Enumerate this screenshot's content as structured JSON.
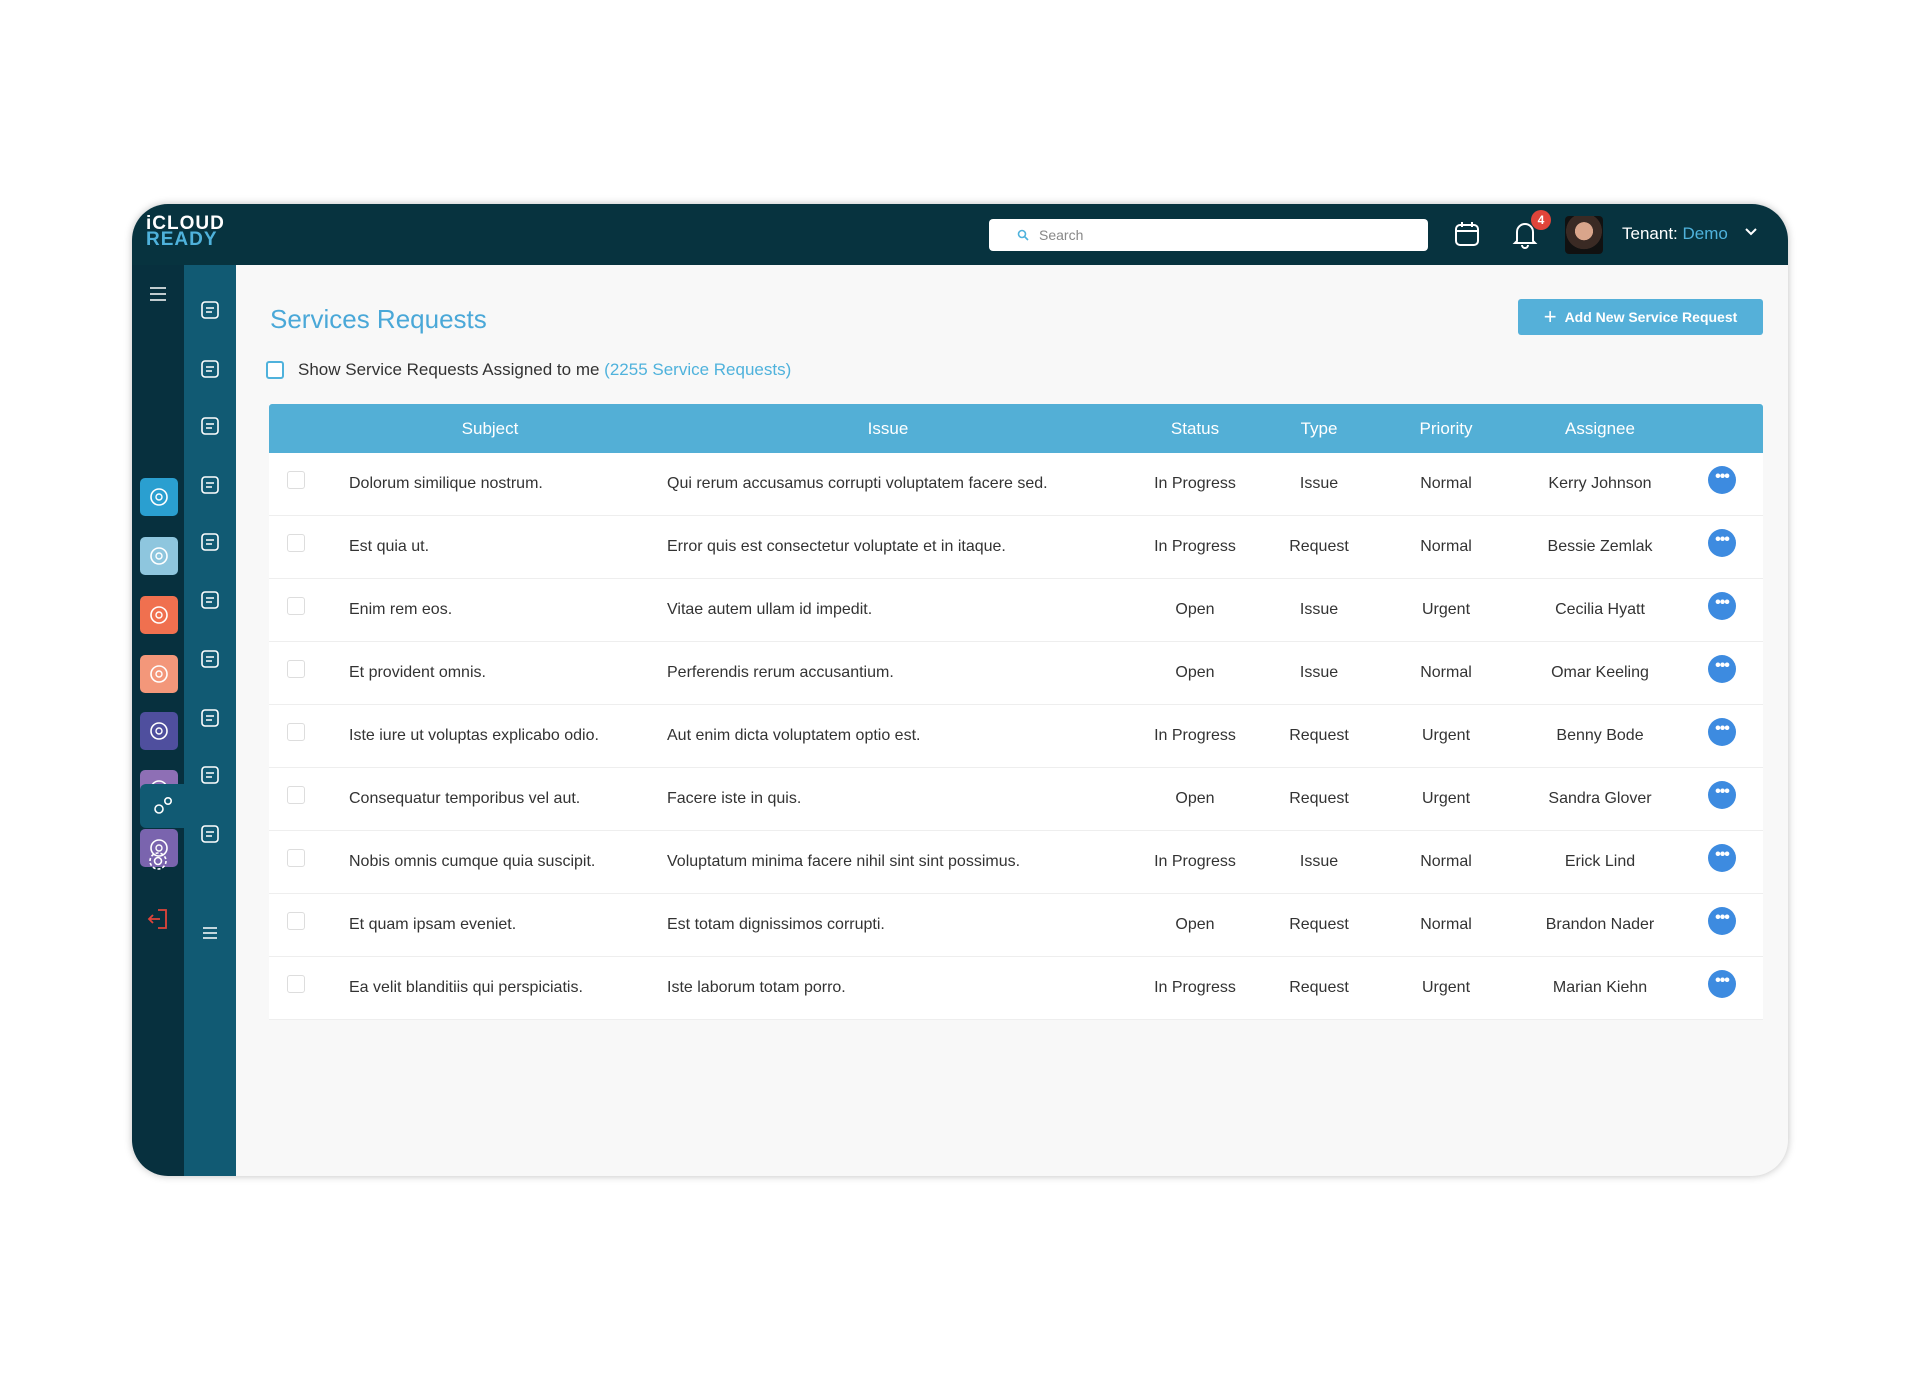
{
  "app": {
    "logo_top": "iCLOUD",
    "logo_bottom": "READY"
  },
  "header": {
    "search_placeholder": "Search",
    "notification_count": "4",
    "tenant_label": "Tenant:",
    "tenant_value": "Demo"
  },
  "page": {
    "title": "Services Requests",
    "add_button": "Add New Service Request",
    "assigned_label": "Show Service Requests Assigned to me",
    "assigned_count": "(2255 Service Requests)"
  },
  "sidebar_primary": [
    {
      "icon": "home-hand-icon",
      "color": "#2a9fd0"
    },
    {
      "icon": "team-icon",
      "color": "#8ec6de"
    },
    {
      "icon": "megaphone-icon",
      "color": "#f0704f"
    },
    {
      "icon": "dollar-cycle-icon",
      "color": "#f3977a"
    },
    {
      "icon": "home-search-icon",
      "color": "#4f4f9e"
    },
    {
      "icon": "mobile-icon",
      "color": "#8e6fb5"
    },
    {
      "icon": "globe-icon",
      "color": "#7a64ae"
    }
  ],
  "sidebar_secondary": [
    "grid-icon",
    "document-settings-icon",
    "list-settings-icon",
    "calendar-icon",
    "user-icon",
    "clipboard-check-icon",
    "user-wrench-icon",
    "clipboard-icon",
    "checklist-icon",
    "workflow-icon",
    "menu-icon"
  ],
  "table": {
    "columns": {
      "subject": "Subject",
      "issue": "Issue",
      "status": "Status",
      "type": "Type",
      "priority": "Priority",
      "assignee": "Assignee"
    },
    "rows": [
      {
        "subject": "Dolorum similique nostrum.",
        "issue": "Qui rerum accusamus corrupti voluptatem facere sed.",
        "status": "In Progress",
        "type": "Issue",
        "priority": "Normal",
        "assignee": "Kerry Johnson"
      },
      {
        "subject": "Est quia ut.",
        "issue": "Error quis est consectetur voluptate et in itaque.",
        "status": "In Progress",
        "type": "Request",
        "priority": "Normal",
        "assignee": "Bessie Zemlak"
      },
      {
        "subject": "Enim rem eos.",
        "issue": "Vitae autem ullam id impedit.",
        "status": "Open",
        "type": "Issue",
        "priority": "Urgent",
        "assignee": "Cecilia Hyatt"
      },
      {
        "subject": "Et provident omnis.",
        "issue": "Perferendis rerum accusantium.",
        "status": "Open",
        "type": "Issue",
        "priority": "Normal",
        "assignee": "Omar Keeling"
      },
      {
        "subject": "Iste iure ut voluptas explicabo odio.",
        "issue": "Aut enim dicta voluptatem optio est.",
        "status": "In Progress",
        "type": "Request",
        "priority": "Urgent",
        "assignee": "Benny Bode"
      },
      {
        "subject": "Consequatur temporibus vel aut.",
        "issue": "Facere iste in quis.",
        "status": "Open",
        "type": "Request",
        "priority": "Urgent",
        "assignee": "Sandra Glover"
      },
      {
        "subject": "Nobis omnis cumque quia suscipit.",
        "issue": "Voluptatum minima facere nihil sint sint possimus.",
        "status": "In Progress",
        "type": "Issue",
        "priority": "Normal",
        "assignee": "Erick Lind"
      },
      {
        "subject": "Et quam ipsam eveniet.",
        "issue": "Est totam dignissimos corrupti.",
        "status": "Open",
        "type": "Request",
        "priority": "Normal",
        "assignee": "Brandon Nader"
      },
      {
        "subject": "Ea velit blanditiis qui perspiciatis.",
        "issue": "Iste laborum totam porro.",
        "status": "In Progress",
        "type": "Request",
        "priority": "Urgent",
        "assignee": "Marian Kiehn"
      }
    ]
  },
  "colors": {
    "header": "#07333f",
    "accent": "#4aa8d8",
    "table_header": "#53afd6",
    "action_button": "#3d8be0",
    "badge": "#e0443a"
  }
}
